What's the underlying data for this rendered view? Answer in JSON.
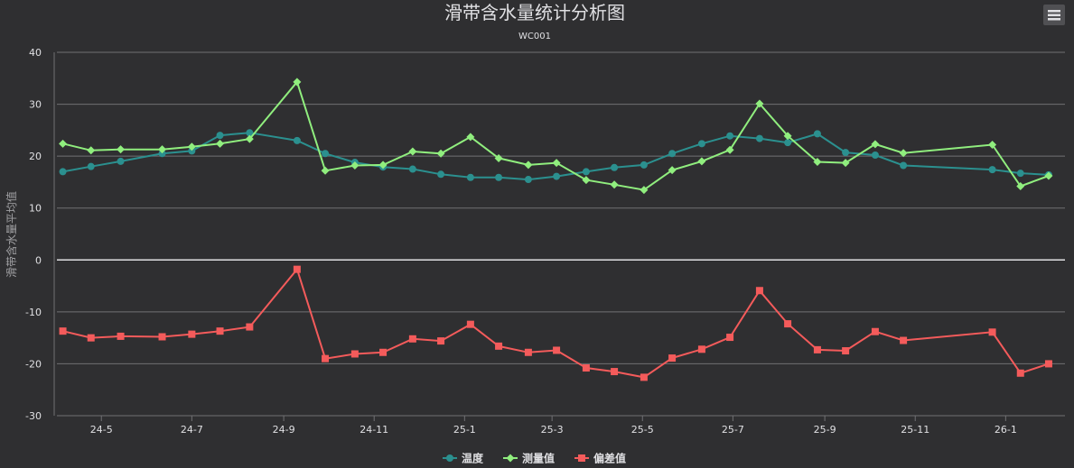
{
  "chart_data": {
    "type": "line",
    "title": "滑带含水量统计分析图",
    "subtitle": "WC001",
    "ylabel": "滑带含水量平均值",
    "xlabel": "",
    "ylim": [
      -30,
      40
    ],
    "yticks": [
      40,
      30,
      20,
      10,
      0,
      -10,
      -20,
      -30
    ],
    "grid": true,
    "legend_position": "bottom-center",
    "x_range": [
      "2024-04-01",
      "2026-02-10"
    ],
    "xtick_labels": [
      {
        "date": "2024-05-01",
        "label": "24-5"
      },
      {
        "date": "2024-07-01",
        "label": "24-7"
      },
      {
        "date": "2024-09-01",
        "label": "24-9"
      },
      {
        "date": "2024-11-01",
        "label": "24-11"
      },
      {
        "date": "2025-01-01",
        "label": "25-1"
      },
      {
        "date": "2025-03-01",
        "label": "25-3"
      },
      {
        "date": "2025-05-01",
        "label": "25-5"
      },
      {
        "date": "2025-07-01",
        "label": "25-7"
      },
      {
        "date": "2025-09-01",
        "label": "25-9"
      },
      {
        "date": "2025-11-01",
        "label": "25-11"
      },
      {
        "date": "2026-01-01",
        "label": "26-1"
      }
    ],
    "x": [
      "2024-04-05",
      "2024-04-24",
      "2024-05-14",
      "2024-06-11",
      "2024-07-01",
      "2024-07-20",
      "2024-08-09",
      "2024-09-10",
      "2024-09-29",
      "2024-10-19",
      "2024-11-07",
      "2024-11-27",
      "2024-12-16",
      "2025-01-05",
      "2025-01-24",
      "2025-02-13",
      "2025-03-04",
      "2025-03-24",
      "2025-04-12",
      "2025-05-02",
      "2025-05-21",
      "2025-06-10",
      "2025-06-29",
      "2025-07-19",
      "2025-08-07",
      "2025-08-27",
      "2025-09-15",
      "2025-10-05",
      "2025-10-24",
      "2025-12-23",
      "2026-01-11",
      "2026-01-30"
    ],
    "series": [
      {
        "name": "温度",
        "color": "#2b908f",
        "marker": "circle",
        "values": [
          17.0,
          18.0,
          19.0,
          20.5,
          21.0,
          24.0,
          24.5,
          23.0,
          20.5,
          18.8,
          17.9,
          17.5,
          16.5,
          15.9,
          15.9,
          15.5,
          16.1,
          17.0,
          17.8,
          18.3,
          20.5,
          22.4,
          23.9,
          23.4,
          22.6,
          24.3,
          20.7,
          20.2,
          18.2,
          17.4,
          16.7,
          16.4
        ]
      },
      {
        "name": "测量值",
        "color": "#90ee7e",
        "marker": "diamond",
        "values": [
          22.4,
          21.1,
          21.3,
          21.3,
          21.8,
          22.4,
          23.3,
          34.3,
          17.2,
          18.2,
          18.3,
          20.9,
          20.5,
          23.7,
          19.6,
          18.3,
          18.7,
          15.4,
          14.5,
          13.5,
          17.3,
          19.0,
          21.2,
          30.1,
          23.9,
          18.9,
          18.7,
          22.3,
          20.6,
          22.2,
          14.2,
          16.2
        ]
      },
      {
        "name": "偏差值",
        "color": "#f45b5b",
        "marker": "square",
        "values": [
          -13.7,
          -15.0,
          -14.7,
          -14.8,
          -14.3,
          -13.7,
          -12.9,
          -1.8,
          -19.0,
          -18.1,
          -17.8,
          -15.2,
          -15.6,
          -12.4,
          -16.6,
          -17.8,
          -17.4,
          -20.8,
          -21.5,
          -22.6,
          -18.9,
          -17.2,
          -14.9,
          -5.9,
          -12.3,
          -17.3,
          -17.5,
          -13.8,
          -15.5,
          -13.9,
          -21.8,
          -20.0
        ]
      }
    ]
  },
  "menu": {
    "icon": "hamburger-menu-icon"
  }
}
